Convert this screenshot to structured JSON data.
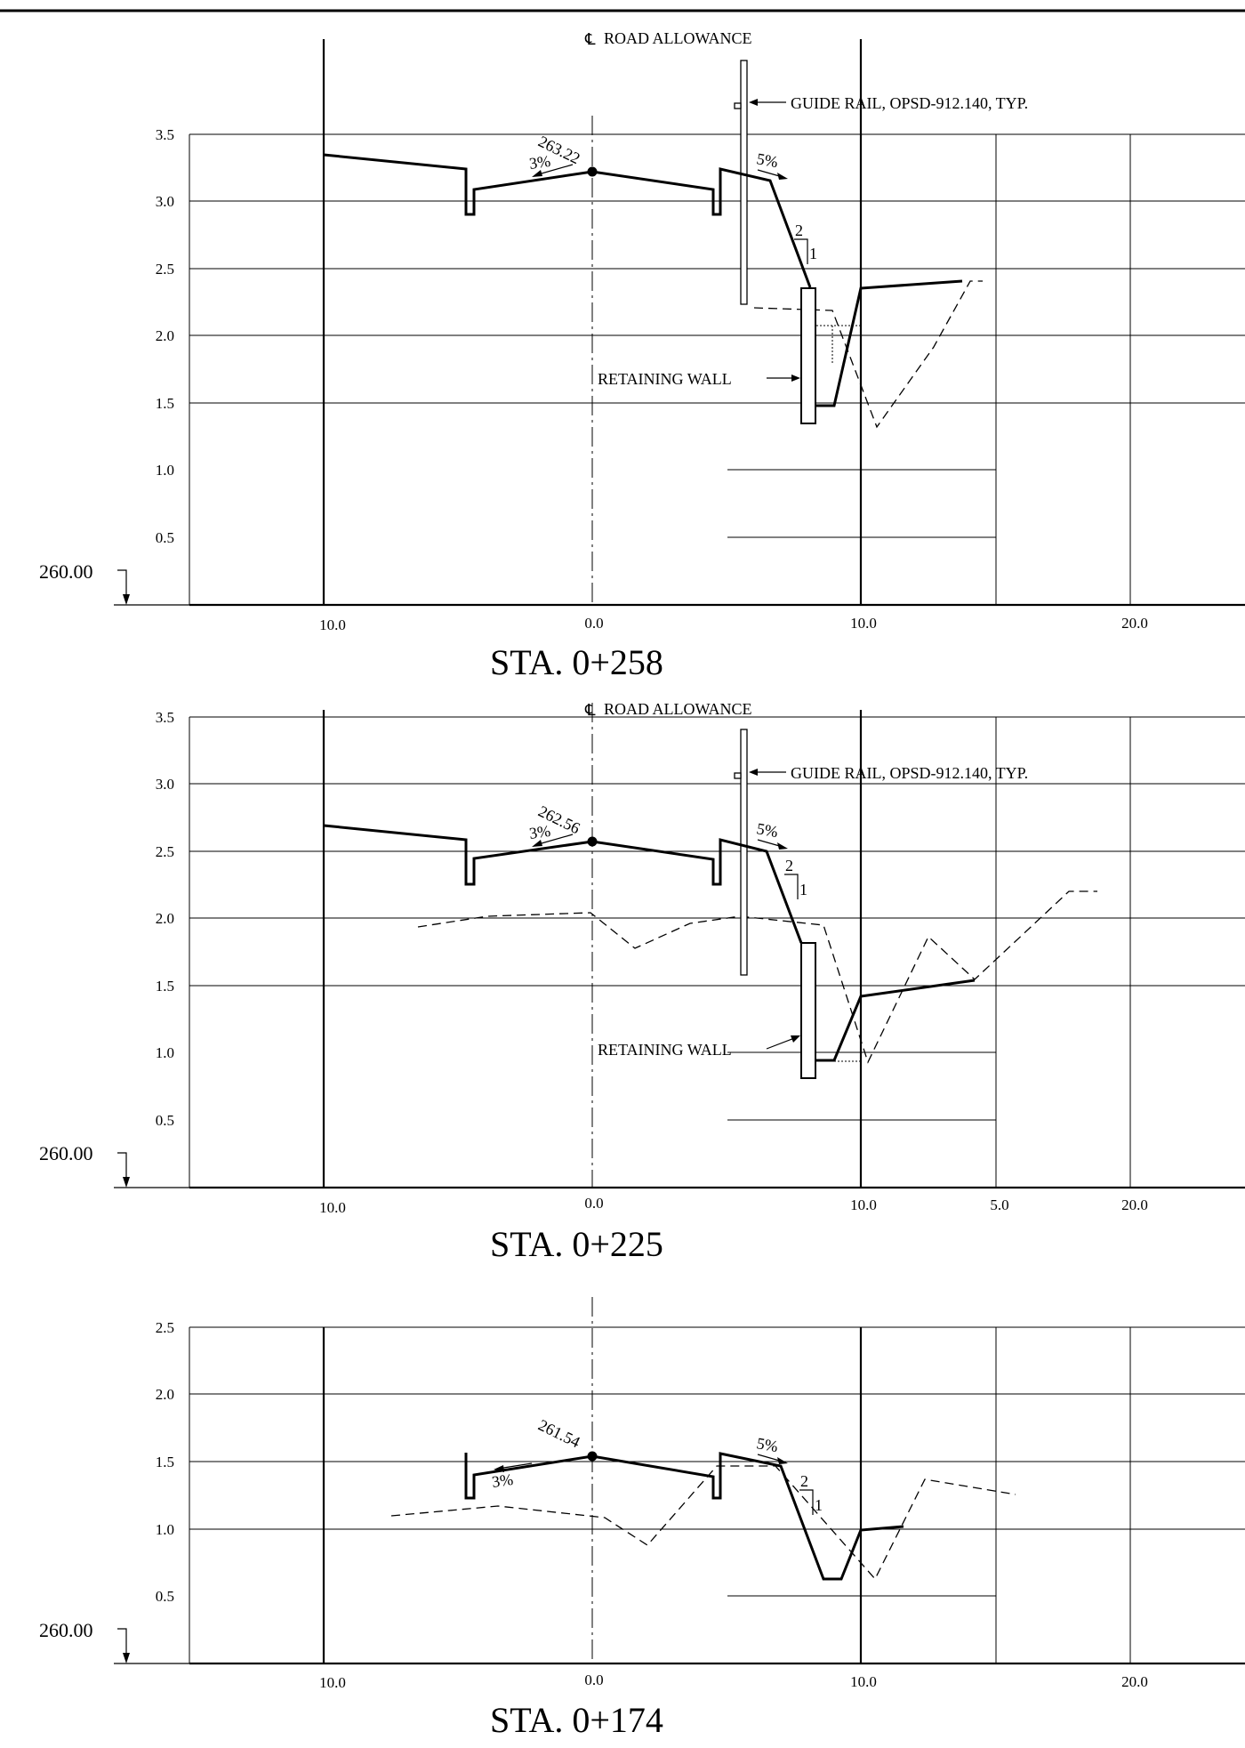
{
  "symbols": {
    "centerline": "℄"
  },
  "sections": [
    {
      "id": "sta-0-258",
      "station_label": "STA. 0+258",
      "datum_label": "260.00",
      "elevation_ticks": [
        "3.5",
        "3.0",
        "2.5",
        "2.0",
        "1.5",
        "1.0",
        "0.5"
      ],
      "offset_ticks": [
        "10.0",
        "0.0",
        "10.0",
        "20.0"
      ],
      "centerline_label": "ROAD ALLOWANCE",
      "guide_rail_label": "GUIDE RAIL, OPSD-912.140, TYP.",
      "retaining_wall_label": "RETAINING WALL",
      "crown_elevation": "263.22",
      "left_slope": "3%",
      "right_slope": "5%",
      "side_slope": {
        "run": "2",
        "rise": "1"
      }
    },
    {
      "id": "sta-0-225",
      "station_label": "STA. 0+225",
      "datum_label": "260.00",
      "elevation_ticks": [
        "3.5",
        "3.0",
        "2.5",
        "2.0",
        "1.5",
        "1.0",
        "0.5"
      ],
      "offset_ticks": [
        "10.0",
        "0.0",
        "10.0",
        "5.0",
        "20.0"
      ],
      "centerline_label": "ROAD ALLOWANCE",
      "guide_rail_label": "GUIDE RAIL, OPSD-912.140, TYP.",
      "retaining_wall_label": "RETAINING WALL",
      "crown_elevation": "262.56",
      "left_slope": "3%",
      "right_slope": "5%",
      "side_slope": {
        "run": "2",
        "rise": "1"
      }
    },
    {
      "id": "sta-0-174",
      "station_label": "STA. 0+174",
      "datum_label": "260.00",
      "elevation_ticks": [
        "2.5",
        "2.0",
        "1.5",
        "1.0",
        "0.5"
      ],
      "offset_ticks": [
        "10.0",
        "0.0",
        "10.0",
        "20.0"
      ],
      "crown_elevation": "261.54",
      "left_slope": "3%",
      "right_slope": "5%",
      "side_slope": {
        "run": "2",
        "rise": "1"
      }
    }
  ]
}
